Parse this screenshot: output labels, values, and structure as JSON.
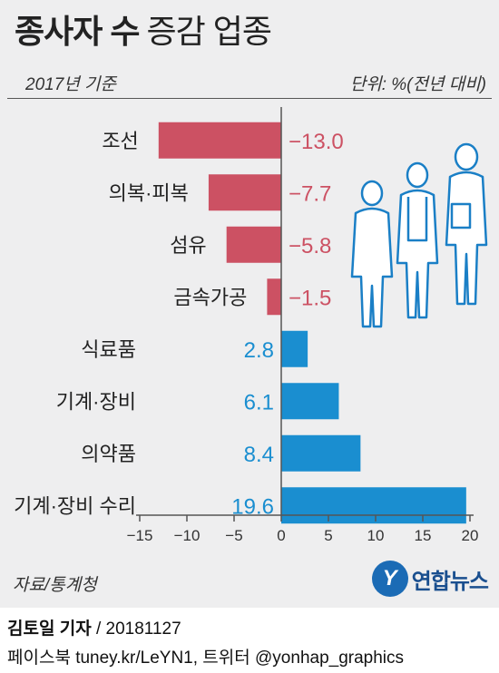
{
  "header": {
    "title_bold": "종사자 수",
    "title_rest": "증감 업종",
    "base_year": "2017년 기준",
    "unit": "단위: %(전년 대비)"
  },
  "source": "자료/통계청",
  "logo": {
    "mark": "Y",
    "text": "연합뉴스"
  },
  "byline": {
    "name": "김토일 기자",
    "rest": " / 20181127"
  },
  "footer": "페이스북 tuney.kr/LeYN1, 트위터 @yonhap_graphics",
  "colors": {
    "negative": "#cc5163",
    "positive": "#1a8ed0",
    "axis": "#555555",
    "background": "#eeeeef"
  },
  "illustration": {
    "icon": "workers-icon"
  },
  "chart_data": {
    "type": "bar",
    "orientation": "horizontal",
    "categories": [
      "조선",
      "의복·피복",
      "섬유",
      "금속가공",
      "식료품",
      "기계·장비",
      "의약품",
      "기계·장비 수리"
    ],
    "value_labels": [
      "−13.0",
      "−7.7",
      "−5.8",
      "−1.5",
      "2.8",
      "6.1",
      "8.4",
      "19.6"
    ],
    "values": [
      -13.0,
      -7.7,
      -5.8,
      -1.5,
      2.8,
      6.1,
      8.4,
      19.6
    ],
    "xlim": [
      -15,
      20
    ],
    "xticks": [
      -15,
      -10,
      -5,
      0,
      5,
      10,
      15,
      20
    ],
    "xtick_labels": [
      "−15",
      "−10",
      "−5",
      "0",
      "5",
      "10",
      "15",
      "20"
    ],
    "title": "종사자 수 증감 업종",
    "xlabel": "",
    "ylabel": "",
    "grid": false
  }
}
